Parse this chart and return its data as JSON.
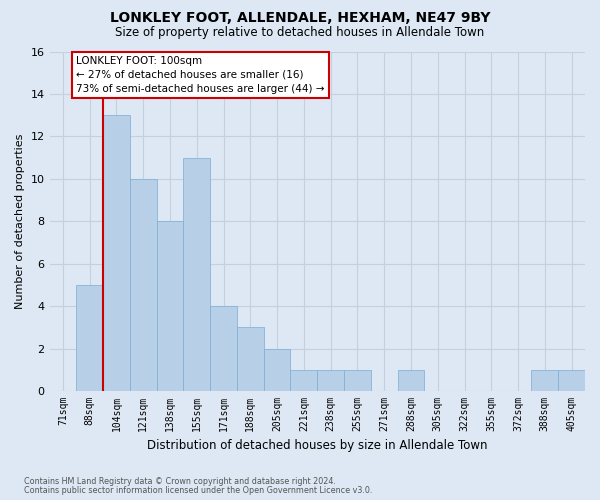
{
  "title": "LONKLEY FOOT, ALLENDALE, HEXHAM, NE47 9BY",
  "subtitle": "Size of property relative to detached houses in Allendale Town",
  "xlabel": "Distribution of detached houses by size in Allendale Town",
  "ylabel": "Number of detached properties",
  "footer1": "Contains HM Land Registry data © Crown copyright and database right 2024.",
  "footer2": "Contains public sector information licensed under the Open Government Licence v3.0.",
  "bins": [
    "71sqm",
    "88sqm",
    "104sqm",
    "121sqm",
    "138sqm",
    "155sqm",
    "171sqm",
    "188sqm",
    "205sqm",
    "221sqm",
    "238sqm",
    "255sqm",
    "271sqm",
    "288sqm",
    "305sqm",
    "322sqm",
    "355sqm",
    "372sqm",
    "388sqm",
    "405sqm"
  ],
  "values": [
    0,
    5,
    13,
    10,
    8,
    11,
    4,
    3,
    2,
    1,
    1,
    1,
    0,
    1,
    0,
    0,
    0,
    0,
    1,
    1
  ],
  "bar_color": "#b8cfe8",
  "bar_edge_color": "#7aaed4",
  "ylim": [
    0,
    16
  ],
  "yticks": [
    0,
    2,
    4,
    6,
    8,
    10,
    12,
    14,
    16
  ],
  "red_line_index": 2,
  "annotation_line1": "LONKLEY FOOT: 100sqm",
  "annotation_line2": "← 27% of detached houses are smaller (16)",
  "annotation_line3": "73% of semi-detached houses are larger (44) →",
  "annotation_box_facecolor": "#ffffff",
  "annotation_box_edgecolor": "#cc0000",
  "background_color": "#dde8f4",
  "grid_color": "#c5cfe0",
  "title_fontsize": 10,
  "subtitle_fontsize": 8.5,
  "ylabel_fontsize": 8,
  "xlabel_fontsize": 8.5,
  "tick_fontsize": 7,
  "ytick_fontsize": 8,
  "footer_fontsize": 5.8,
  "annotation_fontsize": 7.5
}
